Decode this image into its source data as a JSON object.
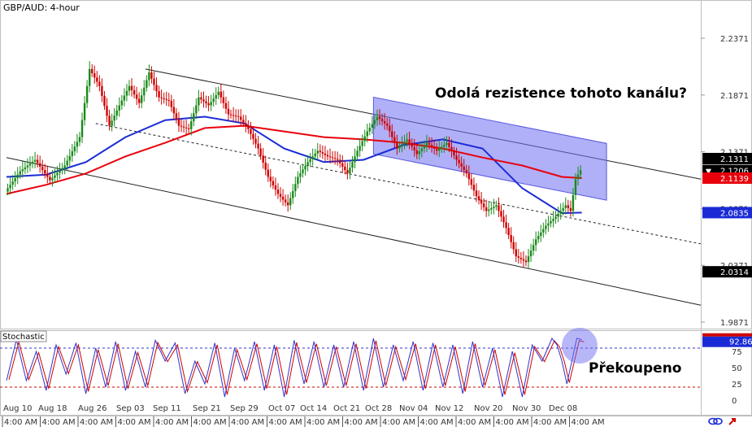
{
  "chart_data": [
    {
      "type": "candlestick",
      "title": "GBP/AUD: 4-hour",
      "ylim": [
        1.97,
        2.25
      ],
      "y_ticks": [
        "2.2371",
        "2.1871",
        "2.1371",
        "2.0871",
        "2.0371",
        "1.9871"
      ],
      "price_labels": [
        {
          "text": "2.1311",
          "value": 2.1311,
          "color": "#000000"
        },
        {
          "text": "2.1206",
          "value": 2.1206,
          "color": "#ffffff",
          "arrow": "▼"
        },
        {
          "text": "2.1139",
          "value": 2.1139,
          "color": "#e8000b"
        },
        {
          "text": "2.0835",
          "value": 2.0835,
          "color": "#1a2bd6"
        },
        {
          "text": "2.0314",
          "value": 2.0314,
          "color": "#000000"
        }
      ],
      "x_dates": [
        "Aug 10",
        "Aug 18",
        "Aug 26",
        "Sep 03",
        "Sep 11",
        "Sep 21",
        "Sep 29",
        "Oct 07",
        "Oct 14",
        "Oct 21",
        "Oct 28",
        "Nov 04",
        "Nov 12",
        "Nov 20",
        "Nov 30",
        "Dec 08"
      ],
      "x_times": [
        "4:00 AM",
        "4:00 AM",
        "4:00 AM",
        "4:00 AM",
        "4:00 AM",
        "4:00 AM",
        "4:00 AM",
        "4:00 AM",
        "4:00 AM",
        "4:00 AM",
        "4:00 AM",
        "4:00 AM",
        "4:00 AM",
        "4:00 AM",
        "4:00 AM",
        "4:00 AM"
      ],
      "price_path": [
        [
          0,
          2.102
        ],
        [
          3,
          2.12
        ],
        [
          6,
          2.13
        ],
        [
          9,
          2.112
        ],
        [
          12,
          2.125
        ],
        [
          15,
          2.15
        ],
        [
          17,
          2.21
        ],
        [
          19,
          2.195
        ],
        [
          21,
          2.16
        ],
        [
          23,
          2.178
        ],
        [
          25,
          2.195
        ],
        [
          27,
          2.18
        ],
        [
          29,
          2.207
        ],
        [
          31,
          2.185
        ],
        [
          33,
          2.182
        ],
        [
          35,
          2.16
        ],
        [
          37,
          2.157
        ],
        [
          39,
          2.185
        ],
        [
          41,
          2.178
        ],
        [
          43,
          2.19
        ],
        [
          45,
          2.17
        ],
        [
          47,
          2.168
        ],
        [
          49,
          2.157
        ],
        [
          51,
          2.14
        ],
        [
          53,
          2.115
        ],
        [
          55,
          2.1
        ],
        [
          57,
          2.09
        ],
        [
          59,
          2.115
        ],
        [
          61,
          2.128
        ],
        [
          63,
          2.138
        ],
        [
          65,
          2.133
        ],
        [
          67,
          2.13
        ],
        [
          69,
          2.118
        ],
        [
          71,
          2.138
        ],
        [
          73,
          2.155
        ],
        [
          75,
          2.168
        ],
        [
          77,
          2.16
        ],
        [
          79,
          2.14
        ],
        [
          81,
          2.148
        ],
        [
          83,
          2.135
        ],
        [
          85,
          2.145
        ],
        [
          87,
          2.138
        ],
        [
          89,
          2.145
        ],
        [
          91,
          2.13
        ],
        [
          93,
          2.118
        ],
        [
          95,
          2.098
        ],
        [
          97,
          2.085
        ],
        [
          99,
          2.09
        ],
        [
          101,
          2.07
        ],
        [
          103,
          2.045
        ],
        [
          105,
          2.04
        ],
        [
          107,
          2.06
        ],
        [
          109,
          2.072
        ],
        [
          111,
          2.08
        ],
        [
          113,
          2.09
        ],
        [
          114,
          2.085
        ],
        [
          115,
          2.113
        ],
        [
          116,
          2.121
        ]
      ],
      "series": [
        {
          "name": "",
          "color": "#1a2bd6",
          "values": [
            [
              0,
              2.115
            ],
            [
              8,
              2.117
            ],
            [
              16,
              2.128
            ],
            [
              24,
              2.15
            ],
            [
              32,
              2.165
            ],
            [
              40,
              2.168
            ],
            [
              48,
              2.162
            ],
            [
              56,
              2.14
            ],
            [
              64,
              2.128
            ],
            [
              72,
              2.13
            ],
            [
              80,
              2.143
            ],
            [
              88,
              2.148
            ],
            [
              96,
              2.14
            ],
            [
              104,
              2.105
            ],
            [
              112,
              2.083
            ],
            [
              116,
              2.0835
            ]
          ]
        },
        {
          "name": "",
          "color": "#e8000b",
          "values": [
            [
              0,
              2.1
            ],
            [
              8,
              2.108
            ],
            [
              16,
              2.118
            ],
            [
              24,
              2.133
            ],
            [
              32,
              2.145
            ],
            [
              40,
              2.158
            ],
            [
              48,
              2.16
            ],
            [
              56,
              2.155
            ],
            [
              64,
              2.15
            ],
            [
              72,
              2.148
            ],
            [
              80,
              2.145
            ],
            [
              88,
              2.14
            ],
            [
              96,
              2.132
            ],
            [
              104,
              2.125
            ],
            [
              112,
              2.115
            ],
            [
              116,
              2.1139
            ]
          ]
        }
      ],
      "channel_lines": [
        {
          "style": "solid",
          "points": [
            [
              28,
              2.21
            ],
            [
              140,
              2.113
            ]
          ]
        },
        {
          "style": "solid",
          "points": [
            [
              0,
              2.132
            ],
            [
              140,
              2.002
            ]
          ]
        },
        {
          "style": "dashed",
          "points": [
            [
              18,
              2.162
            ],
            [
              140,
              2.056
            ]
          ]
        }
      ],
      "annotation": {
        "text": "Odolá rezistence tohoto kanálu?"
      }
    },
    {
      "type": "line",
      "title": "Stochastic",
      "ylim": [
        0,
        100
      ],
      "y_ticks": [
        "75",
        "50",
        "25",
        "0"
      ],
      "levels": [
        80,
        20
      ],
      "last_label": "92.86",
      "last_value": 92.86,
      "series": [
        {
          "name": "",
          "color": "#3333cc",
          "values": [
            [
              0,
              30
            ],
            [
              2,
              93
            ],
            [
              4,
              30
            ],
            [
              6,
              75
            ],
            [
              8,
              15
            ],
            [
              10,
              85
            ],
            [
              12,
              40
            ],
            [
              14,
              88
            ],
            [
              16,
              10
            ],
            [
              18,
              80
            ],
            [
              20,
              20
            ],
            [
              22,
              90
            ],
            [
              24,
              15
            ],
            [
              26,
              75
            ],
            [
              28,
              20
            ],
            [
              30,
              92
            ],
            [
              32,
              60
            ],
            [
              34,
              88
            ],
            [
              36,
              10
            ],
            [
              38,
              60
            ],
            [
              40,
              25
            ],
            [
              42,
              88
            ],
            [
              44,
              5
            ],
            [
              46,
              80
            ],
            [
              48,
              30
            ],
            [
              50,
              90
            ],
            [
              52,
              15
            ],
            [
              54,
              85
            ],
            [
              56,
              5
            ],
            [
              58,
              92
            ],
            [
              60,
              25
            ],
            [
              62,
              90
            ],
            [
              64,
              20
            ],
            [
              66,
              85
            ],
            [
              68,
              20
            ],
            [
              70,
              90
            ],
            [
              72,
              15
            ],
            [
              74,
              95
            ],
            [
              76,
              20
            ],
            [
              78,
              85
            ],
            [
              80,
              30
            ],
            [
              82,
              90
            ],
            [
              84,
              15
            ],
            [
              86,
              88
            ],
            [
              88,
              20
            ],
            [
              90,
              85
            ],
            [
              92,
              10
            ],
            [
              94,
              90
            ],
            [
              96,
              20
            ],
            [
              98,
              80
            ],
            [
              100,
              5
            ],
            [
              102,
              75
            ],
            [
              104,
              5
            ],
            [
              106,
              85
            ],
            [
              108,
              60
            ],
            [
              110,
              95
            ],
            [
              111,
              85
            ],
            [
              112,
              60
            ],
            [
              113,
              25
            ],
            [
              114,
              60
            ],
            [
              115,
              95
            ],
            [
              116,
              93
            ]
          ]
        }
      ],
      "annotation": {
        "text": "Překoupeno"
      }
    }
  ],
  "footer": {
    "icon_1": "chain-link-icon",
    "icon_2": "share-arrow-icon"
  }
}
